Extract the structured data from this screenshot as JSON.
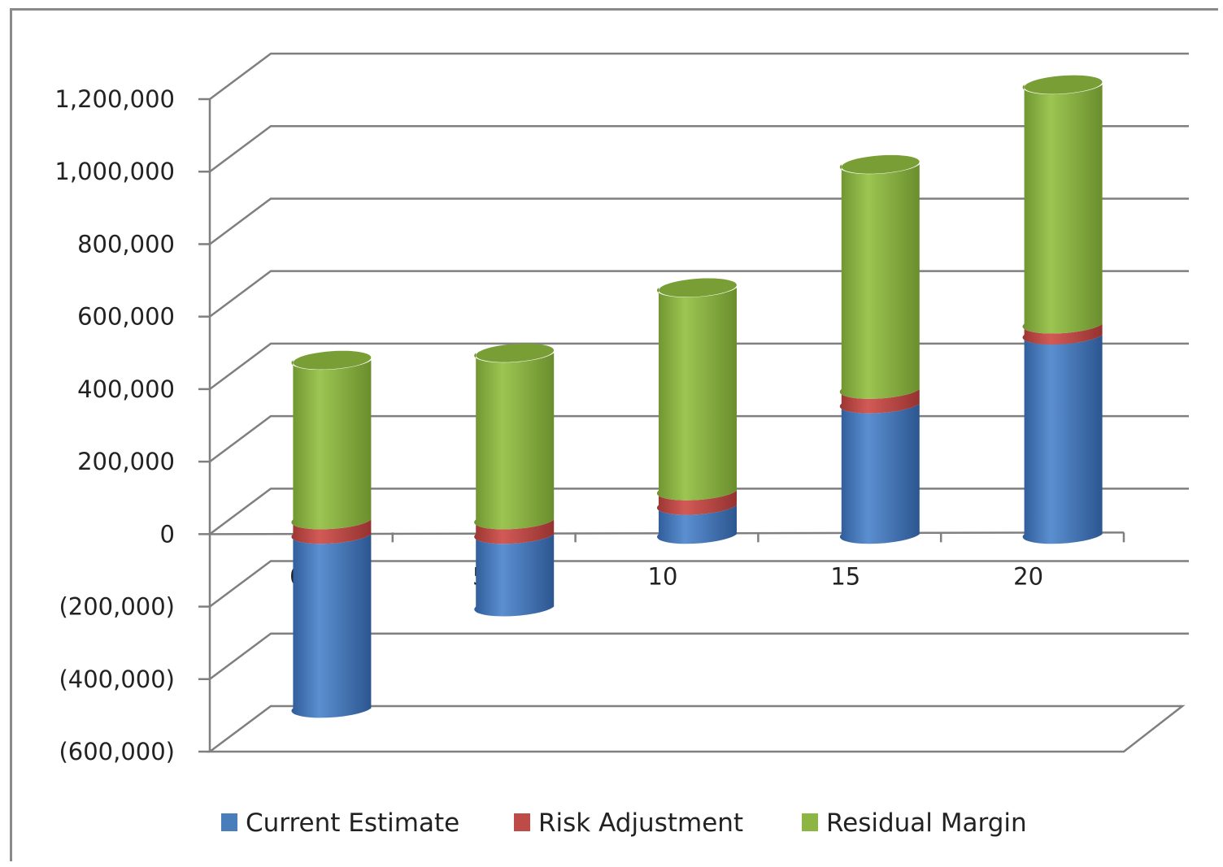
{
  "chart_data": {
    "type": "bar",
    "stacked": true,
    "style": "3d-cylinder",
    "title": "",
    "xlabel": "",
    "ylabel": "",
    "categories": [
      "0",
      "5",
      "10",
      "15",
      "20"
    ],
    "ylim": [
      -600000,
      1200000
    ],
    "y_ticks": [
      1200000,
      1000000,
      800000,
      600000,
      400000,
      200000,
      0,
      -200000,
      -400000,
      -600000
    ],
    "y_tick_labels": [
      "1,200,000",
      "1,000,000",
      "800,000",
      "600,000",
      "400,000",
      "200,000",
      "0",
      "(200,000)",
      "(400,000)",
      "(600,000)"
    ],
    "grid": true,
    "legend_position": "bottom",
    "series": [
      {
        "name": "Current Estimate",
        "color": "#4a7ebb",
        "values": [
          -480000,
          -200000,
          80000,
          360000,
          550000
        ]
      },
      {
        "name": "Risk Adjustment",
        "color": "#be4b48",
        "values": [
          40000,
          40000,
          40000,
          40000,
          30000
        ]
      },
      {
        "name": "Residual Margin",
        "color": "#8db543",
        "values": [
          440000,
          460000,
          560000,
          620000,
          660000
        ]
      }
    ]
  }
}
